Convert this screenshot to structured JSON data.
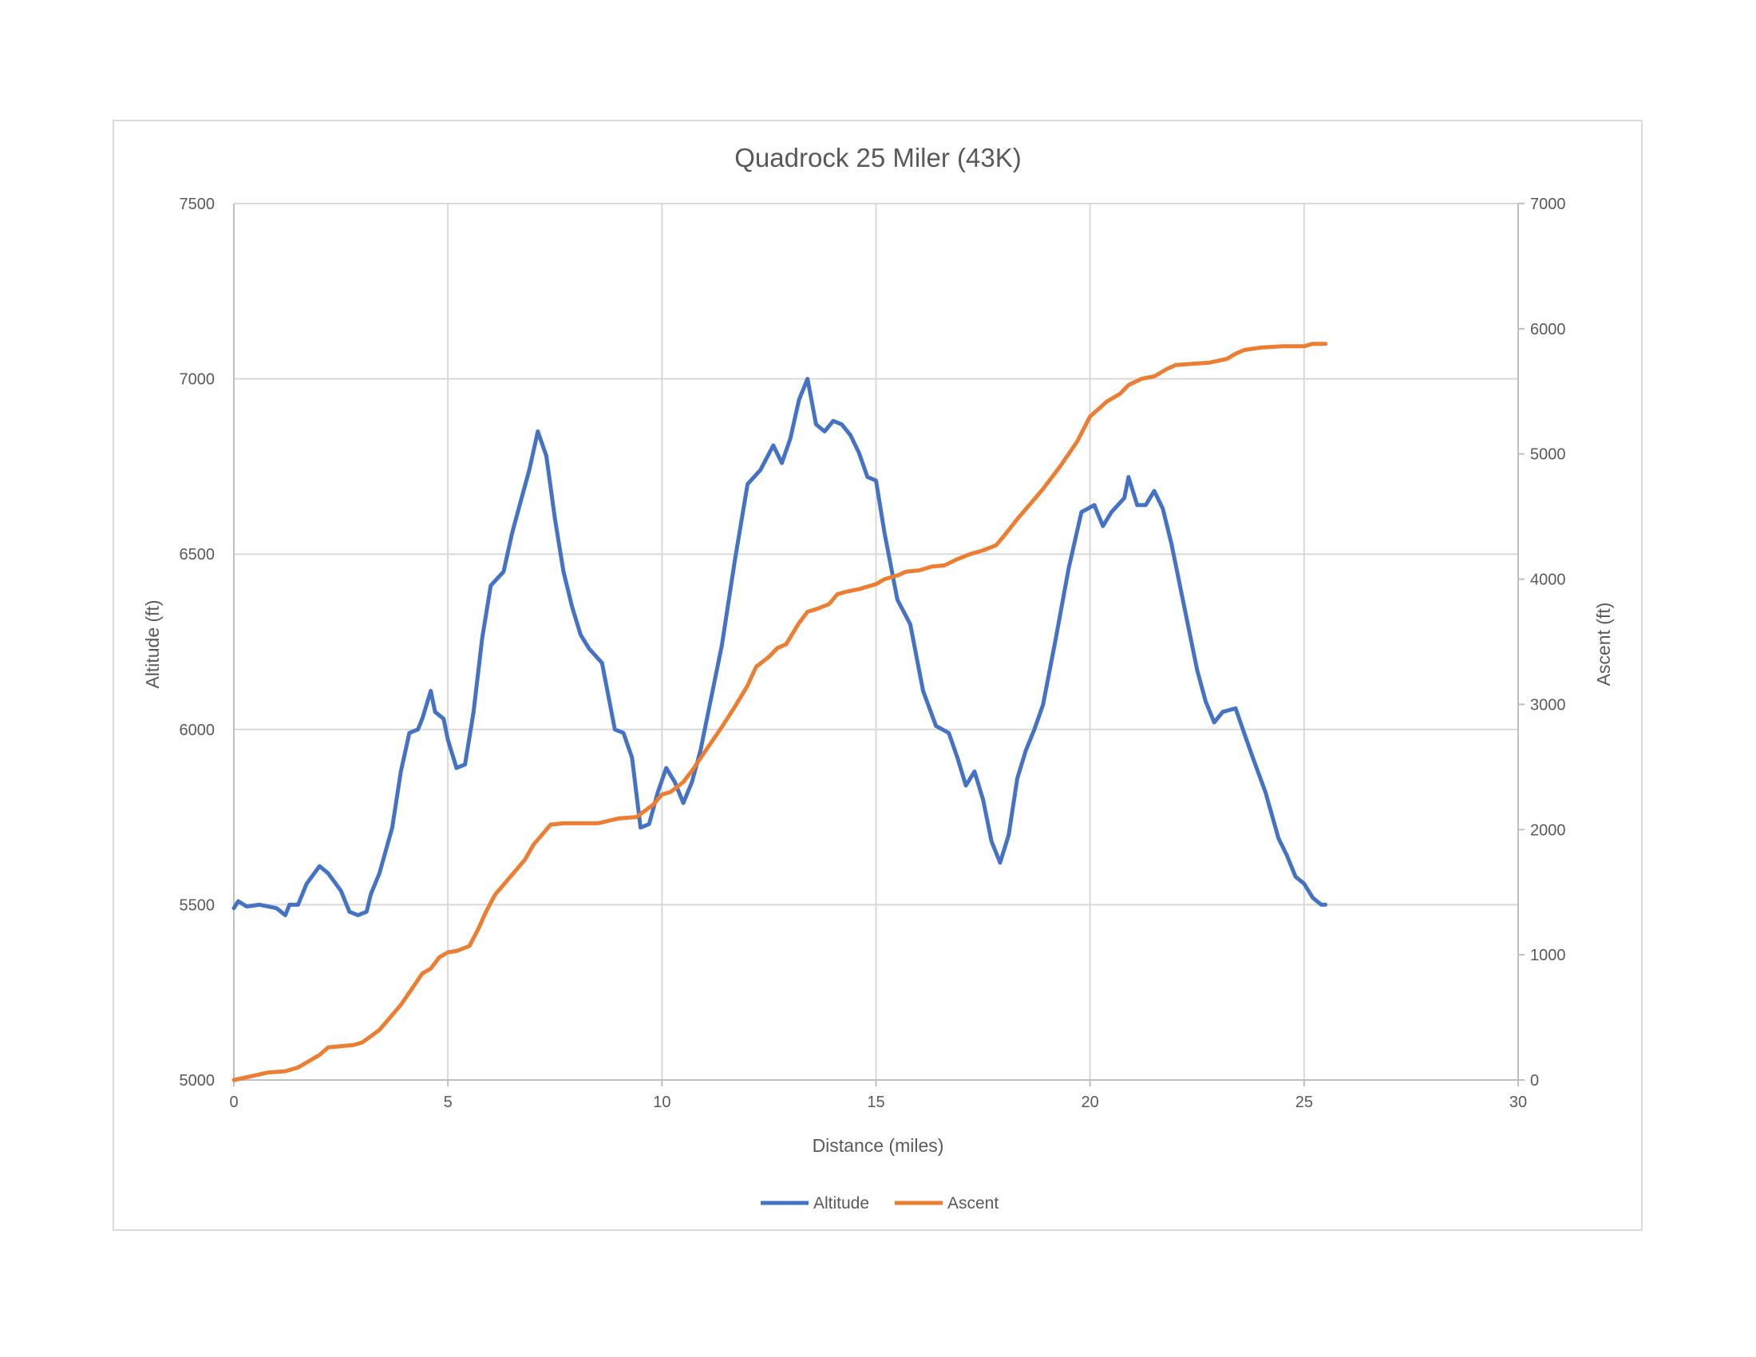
{
  "chart_data": {
    "type": "line",
    "title": "Quadrock 25 Miler (43K)",
    "xlabel": "Distance (miles)",
    "ylabel": "Altitude (ft)",
    "y2label": "Ascent (ft)",
    "xlim": [
      0,
      30
    ],
    "ylim": [
      5000,
      7500
    ],
    "y2lim": [
      0,
      7000
    ],
    "xticks": [
      0,
      5,
      10,
      15,
      20,
      25,
      30
    ],
    "yticks": [
      5000,
      5500,
      6000,
      6500,
      7000,
      7500
    ],
    "y2ticks": [
      0,
      1000,
      2000,
      3000,
      4000,
      5000,
      6000,
      7000
    ],
    "grid": true,
    "legend_position": "bottom",
    "series": [
      {
        "name": "Altitude",
        "axis": "left",
        "color": "#4472c4",
        "x": [
          0,
          0.1,
          0.3,
          0.6,
          0.8,
          1.0,
          1.2,
          1.3,
          1.5,
          1.7,
          2.0,
          2.2,
          2.5,
          2.7,
          2.9,
          3.1,
          3.2,
          3.4,
          3.7,
          3.9,
          4.1,
          4.3,
          4.4,
          4.6,
          4.7,
          4.9,
          5.0,
          5.2,
          5.4,
          5.6,
          5.8,
          6.0,
          6.3,
          6.5,
          6.7,
          6.9,
          7.1,
          7.3,
          7.5,
          7.7,
          7.9,
          8.1,
          8.3,
          8.6,
          8.9,
          9.1,
          9.3,
          9.5,
          9.7,
          9.9,
          10.1,
          10.3,
          10.5,
          10.7,
          10.9,
          11.1,
          11.4,
          11.7,
          12.0,
          12.3,
          12.6,
          12.8,
          13.0,
          13.2,
          13.4,
          13.6,
          13.8,
          14.0,
          14.2,
          14.4,
          14.6,
          14.8,
          15.0,
          15.2,
          15.5,
          15.8,
          16.1,
          16.4,
          16.7,
          16.9,
          17.1,
          17.3,
          17.5,
          17.7,
          17.9,
          18.1,
          18.3,
          18.5,
          18.7,
          18.9,
          19.2,
          19.5,
          19.8,
          20.1,
          20.3,
          20.5,
          20.8,
          20.9,
          21.1,
          21.3,
          21.5,
          21.7,
          21.9,
          22.2,
          22.5,
          22.7,
          22.9,
          23.1,
          23.4,
          23.6,
          23.8,
          24.1,
          24.4,
          24.6,
          24.8,
          25.0,
          25.2,
          25.4,
          25.5
        ],
        "values": [
          5490,
          5510,
          5495,
          5500,
          5495,
          5490,
          5470,
          5500,
          5500,
          5560,
          5610,
          5590,
          5540,
          5480,
          5470,
          5480,
          5530,
          5590,
          5720,
          5880,
          5990,
          6000,
          6030,
          6110,
          6050,
          6030,
          5970,
          5890,
          5900,
          6050,
          6260,
          6410,
          6450,
          6560,
          6650,
          6740,
          6850,
          6780,
          6600,
          6450,
          6350,
          6270,
          6230,
          6190,
          6000,
          5990,
          5920,
          5720,
          5730,
          5820,
          5890,
          5850,
          5790,
          5850,
          5940,
          6060,
          6240,
          6480,
          6700,
          6740,
          6810,
          6760,
          6830,
          6940,
          7000,
          6870,
          6850,
          6880,
          6870,
          6840,
          6790,
          6720,
          6710,
          6560,
          6370,
          6300,
          6110,
          6010,
          5990,
          5920,
          5840,
          5880,
          5800,
          5680,
          5620,
          5700,
          5860,
          5940,
          6000,
          6070,
          6260,
          6460,
          6620,
          6640,
          6580,
          6620,
          6660,
          6720,
          6640,
          6640,
          6680,
          6630,
          6530,
          6350,
          6170,
          6080,
          6020,
          6050,
          6060,
          5990,
          5920,
          5820,
          5690,
          5640,
          5580,
          5560,
          5520,
          5500,
          5500
        ]
      },
      {
        "name": "Ascent",
        "axis": "right",
        "color": "#ed7d31",
        "x": [
          0,
          0.4,
          0.8,
          1.2,
          1.5,
          1.8,
          2.0,
          2.2,
          2.5,
          2.8,
          3.0,
          3.2,
          3.4,
          3.6,
          3.9,
          4.2,
          4.4,
          4.6,
          4.8,
          5.0,
          5.2,
          5.5,
          5.7,
          5.9,
          6.1,
          6.4,
          6.6,
          6.8,
          7.0,
          7.2,
          7.4,
          7.7,
          8.0,
          8.5,
          9.0,
          9.4,
          9.8,
          10.0,
          10.2,
          10.5,
          10.7,
          10.9,
          11.1,
          11.4,
          11.7,
          12.0,
          12.2,
          12.5,
          12.7,
          12.9,
          13.2,
          13.4,
          13.6,
          13.9,
          14.1,
          14.3,
          14.6,
          15.0,
          15.2,
          15.5,
          15.7,
          16.0,
          16.3,
          16.6,
          16.9,
          17.2,
          17.5,
          17.8,
          18.0,
          18.3,
          18.6,
          18.9,
          19.3,
          19.7,
          20.0,
          20.4,
          20.7,
          20.9,
          21.2,
          21.5,
          21.8,
          22.0,
          22.4,
          22.8,
          23.2,
          23.4,
          23.6,
          24.0,
          24.5,
          25.0,
          25.2,
          25.4,
          25.5
        ],
        "values": [
          0,
          30,
          60,
          70,
          100,
          160,
          200,
          260,
          270,
          280,
          300,
          350,
          400,
          480,
          600,
          750,
          850,
          890,
          980,
          1020,
          1030,
          1070,
          1200,
          1350,
          1480,
          1600,
          1680,
          1760,
          1880,
          1960,
          2040,
          2050,
          2050,
          2050,
          2090,
          2100,
          2200,
          2280,
          2300,
          2380,
          2470,
          2570,
          2670,
          2820,
          2980,
          3150,
          3300,
          3380,
          3450,
          3480,
          3650,
          3740,
          3760,
          3800,
          3880,
          3900,
          3920,
          3960,
          4000,
          4030,
          4060,
          4070,
          4100,
          4110,
          4160,
          4200,
          4230,
          4270,
          4350,
          4480,
          4600,
          4720,
          4900,
          5100,
          5300,
          5420,
          5480,
          5550,
          5600,
          5620,
          5680,
          5710,
          5720,
          5730,
          5760,
          5800,
          5830,
          5850,
          5860,
          5860,
          5880,
          5880,
          5880
        ]
      }
    ]
  }
}
